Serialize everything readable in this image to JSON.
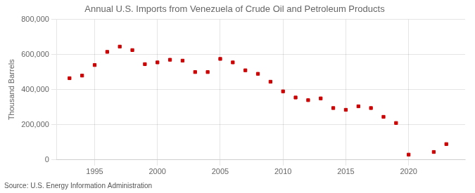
{
  "chart_data": {
    "type": "scatter",
    "title": "Annual U.S. Imports from Venezuela of Crude Oil and Petroleum Products",
    "y_label": "Thousand Barrels",
    "annotations": [
      "Source: U.S. Energy Information Administration"
    ],
    "x": [
      1993,
      1994,
      1995,
      1996,
      1997,
      1998,
      1999,
      2000,
      2001,
      2002,
      2003,
      2004,
      2005,
      2006,
      2007,
      2008,
      2009,
      2010,
      2011,
      2012,
      2013,
      2014,
      2015,
      2016,
      2017,
      2018,
      2019,
      2020,
      2022,
      2023
    ],
    "values": [
      465000,
      480000,
      540000,
      615000,
      645000,
      625000,
      545000,
      555000,
      570000,
      565000,
      500000,
      500000,
      575000,
      555000,
      510000,
      490000,
      445000,
      390000,
      355000,
      340000,
      350000,
      295000,
      285000,
      305000,
      295000,
      245000,
      210000,
      30000,
      45000,
      90000
    ],
    "color": "#cc0000",
    "marker": "square",
    "xlim": [
      1992,
      2024.5
    ],
    "xticks": [
      1995,
      2000,
      2005,
      2010,
      2015,
      2020
    ],
    "ylim": [
      0,
      800000
    ],
    "yticks": [
      0,
      {
        "value": 200000,
        "label": "200,000"
      },
      {
        "value": 400000,
        "label": "400,000"
      },
      {
        "value": 600000,
        "label": "600,000"
      },
      {
        "value": 800000,
        "label": "800,000"
      }
    ],
    "grid": true
  }
}
